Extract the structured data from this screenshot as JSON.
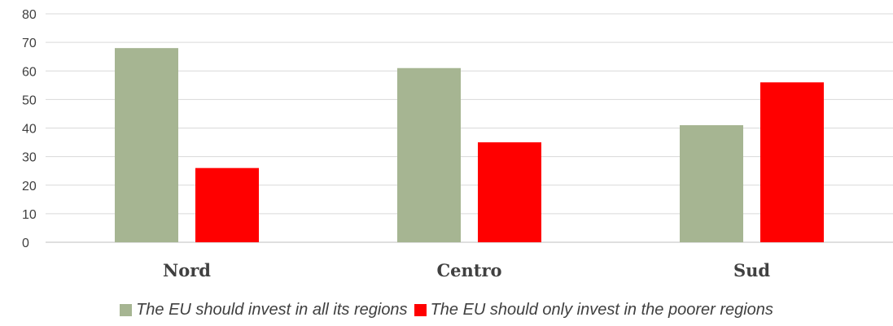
{
  "chart_data": {
    "type": "bar",
    "title": "",
    "xlabel": "",
    "ylabel": "",
    "categories": [
      "Nord",
      "Centro",
      "Sud"
    ],
    "series": [
      {
        "name": "The EU should invest in all its regions",
        "values": [
          68,
          61,
          41
        ],
        "color": "#a6b592"
      },
      {
        "name": "The EU should only invest in the poorer regions",
        "values": [
          26,
          35,
          56
        ],
        "color": "#ff0000"
      }
    ],
    "ylim": [
      0,
      80
    ],
    "yticks": [
      0,
      10,
      20,
      30,
      40,
      50,
      60,
      70,
      80
    ],
    "grid": true,
    "legend_position": "bottom"
  }
}
